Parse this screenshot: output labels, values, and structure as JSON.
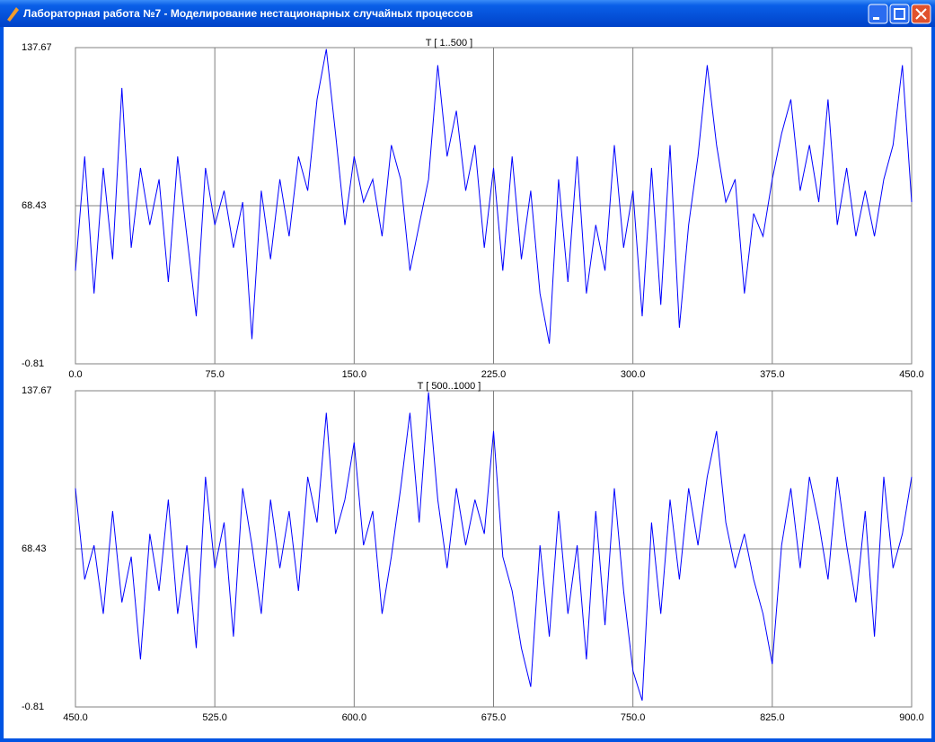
{
  "window": {
    "title": "Лабораторная работа №7 - Моделирование  нестационарных случайных процессов"
  },
  "chart_data": [
    {
      "type": "line",
      "title": "T [ 1..500 ]",
      "color": "#0000ff",
      "grid": true,
      "x": [
        0,
        5,
        10,
        15,
        20,
        25,
        30,
        35,
        40,
        45,
        50,
        55,
        60,
        65,
        70,
        75,
        80,
        85,
        90,
        95,
        100,
        105,
        110,
        115,
        120,
        125,
        130,
        135,
        140,
        145,
        150,
        155,
        160,
        165,
        170,
        175,
        180,
        185,
        190,
        195,
        200,
        205,
        210,
        215,
        220,
        225,
        230,
        235,
        240,
        245,
        250,
        255,
        260,
        265,
        270,
        275,
        280,
        285,
        290,
        295,
        300,
        305,
        310,
        315,
        320,
        325,
        330,
        335,
        340,
        345,
        350,
        355,
        360,
        365,
        370,
        375,
        380,
        385,
        390,
        395,
        400,
        405,
        410,
        415,
        420,
        425,
        430,
        435,
        440,
        445,
        450
      ],
      "values": [
        40,
        90,
        30,
        85,
        45,
        120,
        50,
        85,
        60,
        80,
        35,
        90,
        55,
        20,
        85,
        60,
        75,
        50,
        70,
        10,
        75,
        45,
        80,
        55,
        90,
        75,
        115,
        137,
        100,
        60,
        90,
        70,
        80,
        55,
        95,
        80,
        40,
        60,
        80,
        130,
        90,
        110,
        75,
        95,
        50,
        85,
        40,
        90,
        45,
        75,
        30,
        8,
        80,
        35,
        90,
        30,
        60,
        40,
        95,
        50,
        75,
        20,
        85,
        25,
        95,
        15,
        60,
        90,
        130,
        95,
        70,
        80,
        30,
        65,
        55,
        80,
        100,
        115,
        75,
        95,
        70,
        115,
        60,
        85,
        55,
        75,
        55,
        80,
        95,
        130,
        70
      ],
      "xlim": [
        0,
        450
      ],
      "ylim": [
        -0.81,
        137.67
      ],
      "xticks": [
        {
          "value": 0,
          "label": "0.0"
        },
        {
          "value": 75,
          "label": "75.0"
        },
        {
          "value": 150,
          "label": "150.0"
        },
        {
          "value": 225,
          "label": "225.0"
        },
        {
          "value": 300,
          "label": "300.0"
        },
        {
          "value": 375,
          "label": "375.0"
        },
        {
          "value": 450,
          "label": "450.0"
        }
      ],
      "yticks": [
        -0.81,
        68.43,
        137.67
      ]
    },
    {
      "type": "line",
      "title": "T [ 500..1000 ]",
      "color": "#0000ff",
      "grid": true,
      "x": [
        450,
        455,
        460,
        465,
        470,
        475,
        480,
        485,
        490,
        495,
        500,
        505,
        510,
        515,
        520,
        525,
        530,
        535,
        540,
        545,
        550,
        555,
        560,
        565,
        570,
        575,
        580,
        585,
        590,
        595,
        600,
        605,
        610,
        615,
        620,
        625,
        630,
        635,
        640,
        645,
        650,
        655,
        660,
        665,
        670,
        675,
        680,
        685,
        690,
        695,
        700,
        705,
        710,
        715,
        720,
        725,
        730,
        735,
        740,
        745,
        750,
        755,
        760,
        765,
        770,
        775,
        780,
        785,
        790,
        795,
        800,
        805,
        810,
        815,
        820,
        825,
        830,
        835,
        840,
        845,
        850,
        855,
        860,
        865,
        870,
        875,
        880,
        885,
        890,
        895,
        900
      ],
      "values": [
        95,
        55,
        70,
        40,
        85,
        45,
        65,
        20,
        75,
        50,
        90,
        40,
        70,
        25,
        100,
        60,
        80,
        30,
        95,
        70,
        40,
        90,
        60,
        85,
        50,
        100,
        80,
        128,
        75,
        90,
        115,
        70,
        85,
        40,
        65,
        95,
        128,
        80,
        137,
        90,
        60,
        95,
        70,
        90,
        75,
        120,
        65,
        50,
        25,
        8,
        70,
        30,
        85,
        40,
        70,
        20,
        85,
        35,
        95,
        50,
        15,
        2,
        80,
        40,
        90,
        55,
        95,
        70,
        100,
        120,
        80,
        60,
        75,
        55,
        40,
        18,
        70,
        95,
        60,
        100,
        80,
        55,
        100,
        70,
        45,
        85,
        30,
        100,
        60,
        75,
        100
      ],
      "xlim": [
        450,
        900
      ],
      "ylim": [
        -0.81,
        137.67
      ],
      "xticks": [
        {
          "value": 450,
          "label": "450.0"
        },
        {
          "value": 525,
          "label": "525.0"
        },
        {
          "value": 600,
          "label": "600.0"
        },
        {
          "value": 675,
          "label": "675.0"
        },
        {
          "value": 750,
          "label": "750.0"
        },
        {
          "value": 825,
          "label": "825.0"
        },
        {
          "value": 900,
          "label": "900.0"
        }
      ],
      "yticks": [
        -0.81,
        68.43,
        137.67
      ]
    }
  ]
}
